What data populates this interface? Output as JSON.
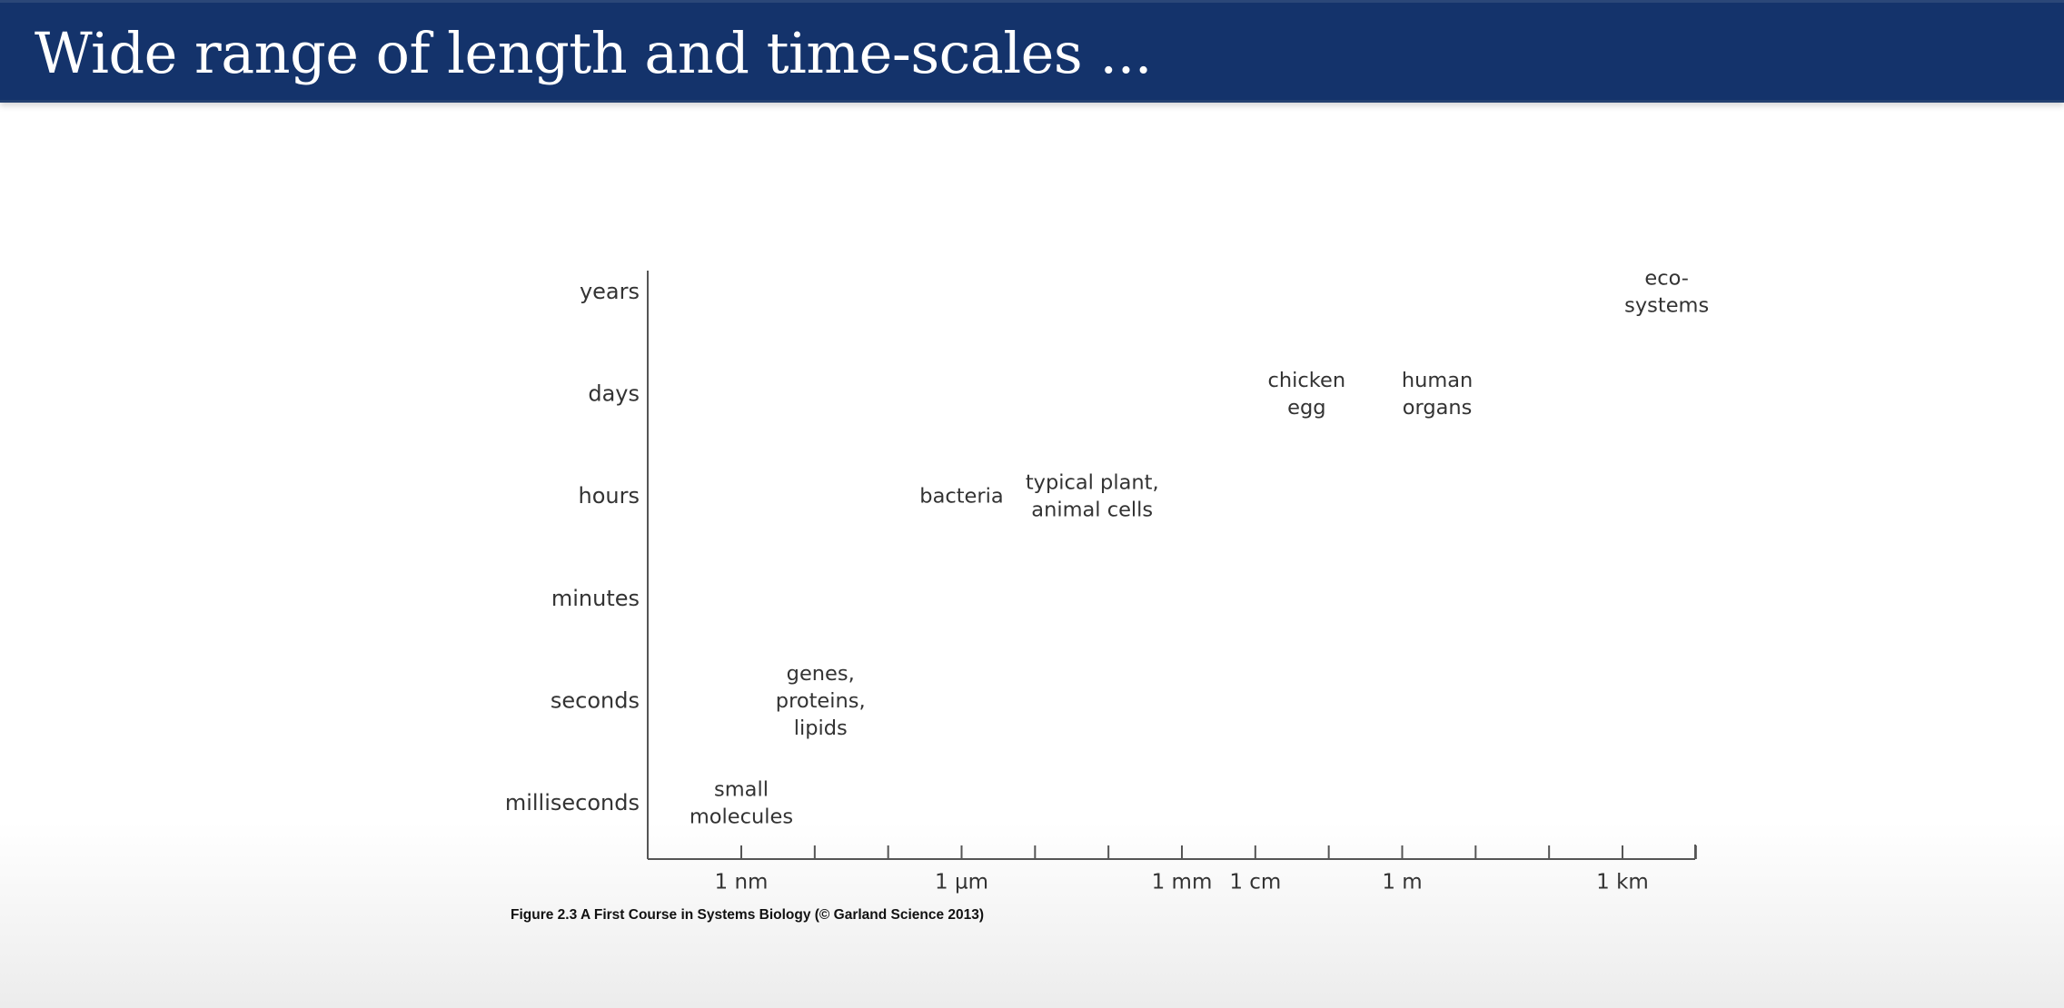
{
  "slide": {
    "title": "Wide range of length and time-scales ...",
    "caption": "Figure 2.3  A First Course in Systems Biology (© Garland Science 2013)"
  },
  "colors": {
    "title_bar": "#14336b",
    "title_text": "#ffffff",
    "axis": "#555555",
    "label_text": "#333333"
  },
  "chart_data": {
    "type": "scatter",
    "title": "",
    "xlabel": "",
    "ylabel": "",
    "grid": false,
    "x_scale": "log",
    "x_unit": "m",
    "xlim": [
      1e-10,
      100000
    ],
    "x_ticks": [
      1e-09,
      1e-08,
      1e-07,
      1e-06,
      1e-05,
      0.0001,
      0.001,
      0.01,
      0.1,
      1,
      10,
      100,
      1000,
      10000
    ],
    "x_tick_labels": [
      {
        "value": 1e-09,
        "label": "1 nm"
      },
      {
        "value": 1e-06,
        "label": "1 µm"
      },
      {
        "value": 0.001,
        "label": "1 mm"
      },
      {
        "value": 0.01,
        "label": "1 cm"
      },
      {
        "value": 1,
        "label": "1 m"
      },
      {
        "value": 1000,
        "label": "1 km"
      }
    ],
    "y_categories": [
      "milliseconds",
      "seconds",
      "minutes",
      "hours",
      "days",
      "years"
    ],
    "points": [
      {
        "lines": [
          "small",
          "molecules"
        ],
        "x": 1e-09,
        "y": "milliseconds"
      },
      {
        "lines": [
          "genes,",
          "proteins,",
          "lipids"
        ],
        "x": 1.2e-08,
        "y": "seconds"
      },
      {
        "lines": [
          "bacteria"
        ],
        "x": 1e-06,
        "y": "hours"
      },
      {
        "lines": [
          "typical plant,",
          "animal cells"
        ],
        "x": 6e-05,
        "y": "hours"
      },
      {
        "lines": [
          "chicken",
          "egg"
        ],
        "x": 0.05,
        "y": "days"
      },
      {
        "lines": [
          "human",
          "organs"
        ],
        "x": 3,
        "y": "days"
      },
      {
        "lines": [
          "eco-",
          "systems"
        ],
        "x": 4000,
        "y": "years"
      }
    ]
  }
}
